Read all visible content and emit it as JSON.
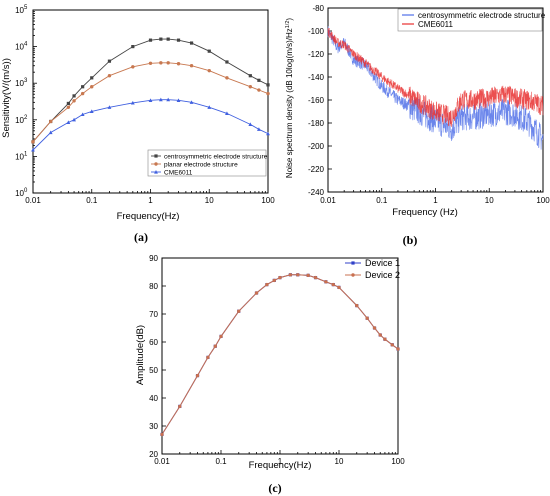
{
  "chart_data": [
    {
      "type": "line",
      "panel_label": "(a)",
      "xlabel": "Frequency(Hz)",
      "ylabel": "Sensitivity(V/(m/s))",
      "xscale": "log",
      "yscale": "log",
      "xlim": [
        0.01,
        100
      ],
      "ylim": [
        1,
        100000
      ],
      "x_ticks": [
        {
          "v": 0.01,
          "label": "0.01"
        },
        {
          "v": 0.1,
          "label": "0.1"
        },
        {
          "v": 1,
          "label": "1"
        },
        {
          "v": 10,
          "label": "10"
        },
        {
          "v": 100,
          "label": "100"
        }
      ],
      "y_ticks": [
        {
          "v": 1,
          "label": "10",
          "sup": "0"
        },
        {
          "v": 10,
          "label": "10",
          "sup": "1"
        },
        {
          "v": 100,
          "label": "10",
          "sup": "2"
        },
        {
          "v": 1000,
          "label": "10",
          "sup": "3"
        },
        {
          "v": 10000,
          "label": "10",
          "sup": "4"
        },
        {
          "v": 100000,
          "label": "10",
          "sup": "5"
        }
      ],
      "legend_position": "bottom-right",
      "series": [
        {
          "name": "centrosymmetric electrode structure",
          "color": "#444444",
          "marker": "square",
          "x": [
            0.01,
            0.02,
            0.04,
            0.05,
            0.07,
            0.1,
            0.2,
            0.5,
            1,
            1.5,
            2,
            3,
            5,
            10,
            20,
            50,
            70,
            100
          ],
          "y": [
            25,
            90,
            280,
            450,
            800,
            1400,
            4000,
            10000,
            15000,
            16000,
            16000,
            15000,
            12500,
            7500,
            3800,
            1600,
            1200,
            900
          ]
        },
        {
          "name": "planar electrode structure",
          "color": "#c87850",
          "marker": "circle",
          "x": [
            0.01,
            0.02,
            0.04,
            0.05,
            0.07,
            0.1,
            0.2,
            0.5,
            1,
            1.5,
            2,
            3,
            5,
            10,
            20,
            50,
            70,
            100
          ],
          "y": [
            25,
            90,
            220,
            330,
            520,
            800,
            1600,
            2800,
            3500,
            3600,
            3600,
            3400,
            3000,
            2200,
            1400,
            800,
            650,
            520
          ]
        },
        {
          "name": "CME6011",
          "color": "#4060e0",
          "marker": "triangle",
          "x": [
            0.01,
            0.02,
            0.04,
            0.05,
            0.07,
            0.1,
            0.2,
            0.5,
            1,
            1.5,
            2,
            3,
            5,
            10,
            20,
            50,
            70,
            100
          ],
          "y": [
            15,
            45,
            85,
            100,
            140,
            170,
            220,
            290,
            340,
            355,
            355,
            340,
            300,
            220,
            150,
            75,
            55,
            42
          ]
        }
      ]
    },
    {
      "type": "line",
      "panel_label": "(b)",
      "xlabel": "Frequency (Hz)",
      "ylabel": "Noise spectrum density (dB 10log(m/s)/Hz^1/2)",
      "xscale": "log",
      "xlim": [
        0.01,
        100
      ],
      "ylim": [
        -240,
        -80
      ],
      "x_ticks": [
        {
          "v": 0.01,
          "label": "0.01"
        },
        {
          "v": 0.1,
          "label": "0.1"
        },
        {
          "v": 1,
          "label": "1"
        },
        {
          "v": 10,
          "label": "10"
        },
        {
          "v": 100,
          "label": "100"
        }
      ],
      "y_ticks": [
        -80,
        -100,
        -120,
        -140,
        -160,
        -180,
        -200,
        -220,
        -240
      ],
      "legend_position": "top-right",
      "series": [
        {
          "name": "centrosymmetric electrode structure",
          "color": "#5070e8",
          "x": [
            0.01,
            0.015,
            0.02,
            0.03,
            0.05,
            0.1,
            0.2,
            0.5,
            1,
            2,
            3,
            5,
            10,
            20,
            30,
            50,
            70,
            100
          ],
          "y": [
            -100,
            -115,
            -110,
            -125,
            -130,
            -148,
            -160,
            -170,
            -178,
            -185,
            -175,
            -175,
            -172,
            -170,
            -172,
            -178,
            -185,
            -195
          ]
        },
        {
          "name": "CME6011",
          "color": "#e83030",
          "x": [
            0.01,
            0.015,
            0.02,
            0.03,
            0.05,
            0.1,
            0.2,
            0.5,
            1,
            2,
            3,
            5,
            10,
            20,
            30,
            50,
            70,
            100
          ],
          "y": [
            -100,
            -110,
            -112,
            -120,
            -128,
            -140,
            -150,
            -162,
            -170,
            -175,
            -160,
            -160,
            -158,
            -155,
            -158,
            -160,
            -162,
            -165
          ]
        }
      ]
    },
    {
      "type": "line",
      "panel_label": "(c)",
      "xlabel": "Frequency(Hz)",
      "ylabel": "Amplitude(dB)",
      "xscale": "log",
      "xlim": [
        0.01,
        100
      ],
      "ylim": [
        20,
        90
      ],
      "x_ticks": [
        {
          "v": 0.01,
          "label": "0.01"
        },
        {
          "v": 0.1,
          "label": "0.1"
        },
        {
          "v": 1,
          "label": "1"
        },
        {
          "v": 10,
          "label": "10"
        },
        {
          "v": 100,
          "label": "100"
        }
      ],
      "y_ticks": [
        20,
        30,
        40,
        50,
        60,
        70,
        80,
        90
      ],
      "legend_position": "top-right",
      "series": [
        {
          "name": "Device 1",
          "color": "#3040c8",
          "marker": "square",
          "x": [
            0.01,
            0.02,
            0.04,
            0.06,
            0.08,
            0.1,
            0.2,
            0.4,
            0.6,
            0.8,
            1,
            1.5,
            2,
            3,
            4,
            6,
            8,
            10,
            20,
            30,
            40,
            50,
            60,
            80,
            100
          ],
          "y": [
            27,
            37,
            48,
            54.5,
            58.5,
            62,
            71,
            77.5,
            80.5,
            82,
            83,
            84,
            84,
            83.8,
            83,
            81.5,
            80.5,
            79.5,
            73,
            68.5,
            65,
            62.5,
            61,
            59,
            57.5
          ]
        },
        {
          "name": "Device 2",
          "color": "#c87050",
          "marker": "circle",
          "x": [
            0.01,
            0.02,
            0.04,
            0.06,
            0.08,
            0.1,
            0.2,
            0.4,
            0.6,
            0.8,
            1,
            1.5,
            2,
            3,
            4,
            6,
            8,
            10,
            20,
            30,
            40,
            50,
            60,
            80,
            100
          ],
          "y": [
            27,
            37,
            48,
            54.5,
            58.5,
            62,
            71,
            77.5,
            80.5,
            82,
            83,
            84,
            84,
            83.8,
            83,
            81.5,
            80.5,
            79.5,
            73,
            68.5,
            65,
            62.5,
            61,
            59,
            57.5
          ]
        }
      ]
    }
  ]
}
